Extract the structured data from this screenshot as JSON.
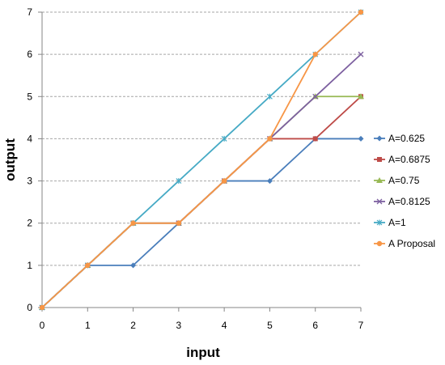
{
  "chart_data": {
    "type": "line",
    "title": "",
    "xlabel": "input",
    "ylabel": "output",
    "xlim": [
      0,
      7
    ],
    "ylim": [
      0,
      7
    ],
    "x_ticks": [
      "0",
      "1",
      "2",
      "3",
      "4",
      "5",
      "6",
      "7"
    ],
    "y_ticks": [
      "0",
      "1",
      "2",
      "3",
      "4",
      "5",
      "6",
      "7"
    ],
    "grid": "horizontal dashed",
    "legend_position": "right",
    "x": [
      0,
      1,
      2,
      3,
      4,
      5,
      6,
      7
    ],
    "series": [
      {
        "name": "A=0.625",
        "values": [
          0,
          1,
          1,
          2,
          3,
          3,
          4,
          4
        ],
        "color": "#4a7ebb",
        "marker": "diamond"
      },
      {
        "name": "A=0.6875",
        "values": [
          0,
          1,
          2,
          2,
          3,
          4,
          4,
          5
        ],
        "color": "#be4b48",
        "marker": "square"
      },
      {
        "name": "A=0.75",
        "values": [
          0,
          1,
          2,
          2,
          3,
          4,
          5,
          5
        ],
        "color": "#98b954",
        "marker": "triangle"
      },
      {
        "name": "A=0.8125",
        "values": [
          0,
          1,
          2,
          2,
          3,
          4,
          5,
          6
        ],
        "color": "#7d60a0",
        "marker": "x"
      },
      {
        "name": "A=1",
        "values": [
          0,
          1,
          2,
          3,
          4,
          5,
          6,
          7
        ],
        "color": "#46aac5",
        "marker": "star"
      },
      {
        "name": "A Proposal",
        "values": [
          0,
          1,
          2,
          2,
          3,
          4,
          6,
          7
        ],
        "color": "#f79646",
        "marker": "circle"
      }
    ]
  }
}
